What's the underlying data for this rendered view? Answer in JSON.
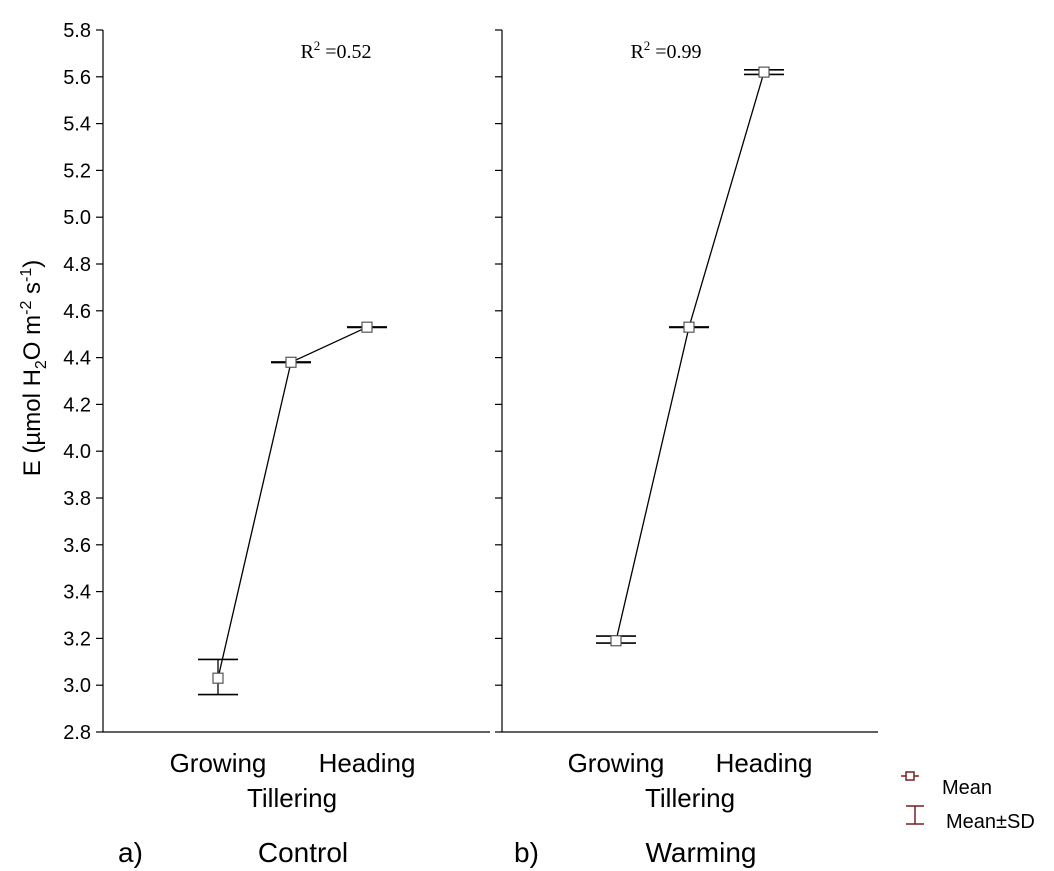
{
  "y_axis_label": "E  (µmol H2O m-2 s-1)",
  "y_axis_label_parts": [
    "E  (µmol H",
    "2",
    "O m",
    "-2",
    " s",
    "-1",
    ")"
  ],
  "legend": {
    "mean_label": "Mean",
    "sd_label": "Mean±SD",
    "color": "#7a1f24"
  },
  "chart_data": [
    {
      "type": "line",
      "panel_label": "a)",
      "panel_title": "Control",
      "annotation": "R2 =0.52",
      "annotation_parts": [
        "R",
        "2",
        " =0.52"
      ],
      "x": [
        "Growing",
        "Tillering",
        "Heading"
      ],
      "x_tick_labels": [
        "Growing",
        "Tillering",
        "Heading"
      ],
      "ylim": [
        2.8,
        5.8
      ],
      "y_ticks": [
        "2.8",
        "3.0",
        "3.2",
        "3.4",
        "3.6",
        "3.8",
        "4.0",
        "4.2",
        "4.4",
        "4.6",
        "4.8",
        "5.0",
        "5.2",
        "5.4",
        "5.6",
        "5.8"
      ],
      "series": [
        {
          "mean": [
            3.03,
            4.38,
            4.53
          ],
          "sd_low": [
            2.96,
            4.38,
            4.53
          ],
          "sd_high": [
            3.11,
            4.38,
            4.53
          ]
        }
      ],
      "grid": false
    },
    {
      "type": "line",
      "panel_label": "b)",
      "panel_title": "Warming",
      "annotation": "R2 =0.99",
      "annotation_parts": [
        "R",
        "2",
        " =0.99"
      ],
      "x": [
        "Growing",
        "Tillering",
        "Heading"
      ],
      "x_tick_labels": [
        "Growing",
        "Tillering",
        "Heading"
      ],
      "ylim": [
        2.8,
        5.8
      ],
      "y_ticks": [
        "2.8",
        "3.0",
        "3.2",
        "3.4",
        "3.6",
        "3.8",
        "4.0",
        "4.2",
        "4.4",
        "4.6",
        "4.8",
        "5.0",
        "5.2",
        "5.4",
        "5.6",
        "5.8"
      ],
      "series": [
        {
          "mean": [
            3.19,
            4.53,
            5.62
          ],
          "sd_low": [
            3.18,
            4.53,
            5.61
          ],
          "sd_high": [
            3.21,
            4.53,
            5.63
          ]
        }
      ],
      "grid": false
    }
  ]
}
